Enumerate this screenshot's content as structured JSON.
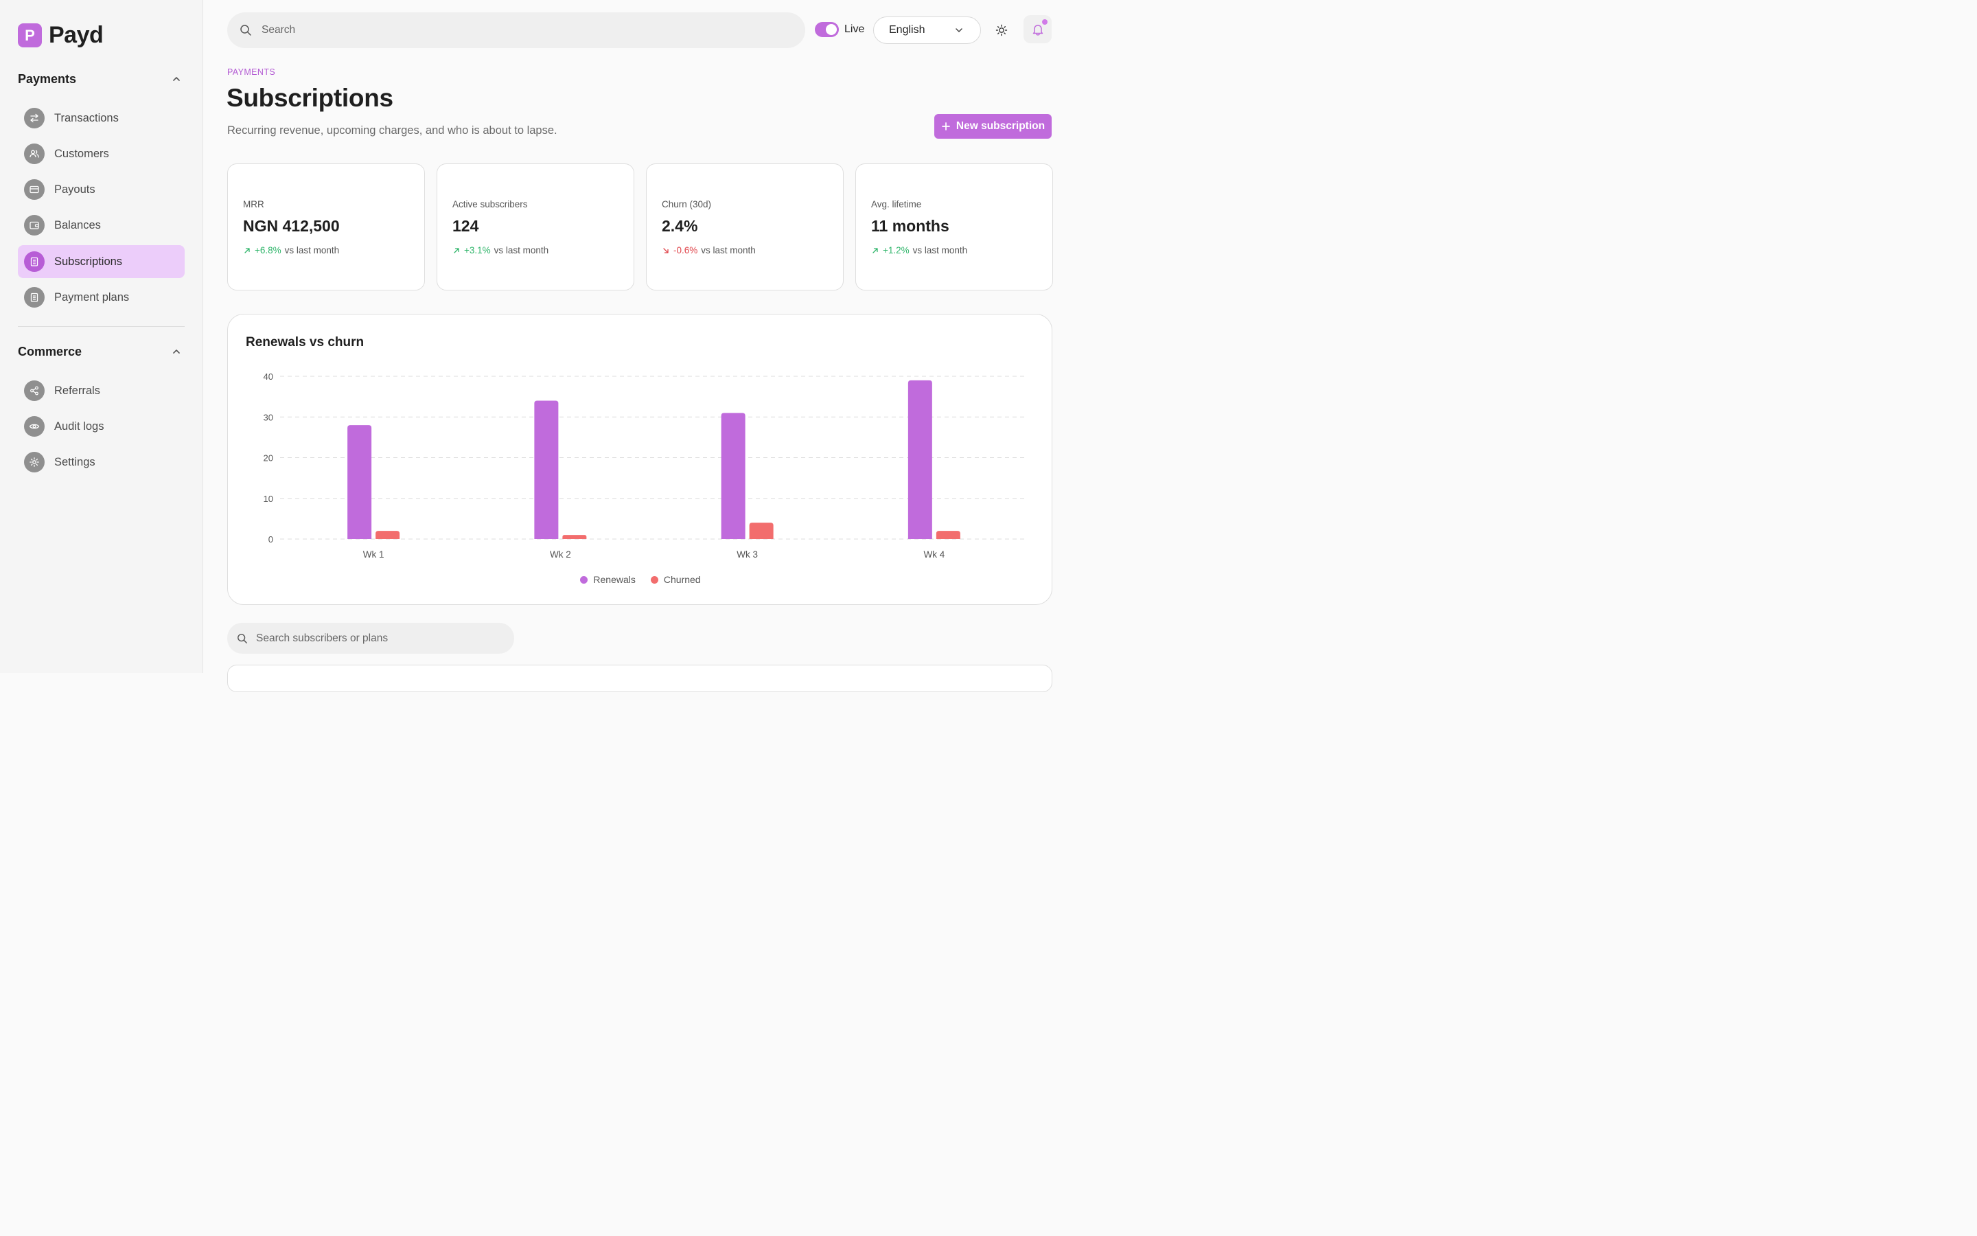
{
  "app": {
    "name": "Payd",
    "logo_letter": "P"
  },
  "sidebar": {
    "sections": [
      {
        "title": "Payments",
        "items": [
          {
            "label": "Transactions",
            "icon": "arrows-swap-icon"
          },
          {
            "label": "Customers",
            "icon": "users-icon"
          },
          {
            "label": "Payouts",
            "icon": "card-icon"
          },
          {
            "label": "Balances",
            "icon": "wallet-icon"
          },
          {
            "label": "Subscriptions",
            "icon": "clipboard-icon",
            "active": true
          },
          {
            "label": "Payment plans",
            "icon": "clipboard-icon"
          }
        ]
      },
      {
        "title": "Commerce",
        "items": [
          {
            "label": "Referrals",
            "icon": "share-icon"
          },
          {
            "label": "Audit logs",
            "icon": "eye-icon"
          },
          {
            "label": "Settings",
            "icon": "gear-icon"
          }
        ]
      }
    ]
  },
  "topbar": {
    "search_placeholder": "Search",
    "live_label": "Live",
    "live_on": true,
    "language": "English"
  },
  "page": {
    "breadcrumb": "PAYMENTS",
    "title": "Subscriptions",
    "subtitle": "Recurring revenue, upcoming charges, and who is about to lapse.",
    "new_button": "New subscription"
  },
  "stats": [
    {
      "label": "MRR",
      "value": "NGN 412,500",
      "delta": "+6.8%",
      "direction": "up",
      "suffix": "vs last month"
    },
    {
      "label": "Active subscribers",
      "value": "124",
      "delta": "+3.1%",
      "direction": "up",
      "suffix": "vs last month"
    },
    {
      "label": "Churn (30d)",
      "value": "2.4%",
      "delta": "-0.6%",
      "direction": "down",
      "suffix": "vs last month"
    },
    {
      "label": "Avg. lifetime",
      "value": "11 months",
      "delta": "+1.2%",
      "direction": "up",
      "suffix": "vs last month"
    }
  ],
  "chart_data": {
    "type": "bar",
    "title": "Renewals vs churn",
    "categories": [
      "Wk 1",
      "Wk 2",
      "Wk 3",
      "Wk 4"
    ],
    "series": [
      {
        "name": "Renewals",
        "values": [
          28,
          34,
          31,
          39
        ],
        "color": "#c06bdc"
      },
      {
        "name": "Churned",
        "values": [
          2,
          1,
          4,
          2
        ],
        "color": "#f26d6d"
      }
    ],
    "ylim": [
      0,
      40
    ],
    "yticks": [
      0,
      10,
      20,
      30,
      40
    ],
    "grid": true,
    "legend": "bottom-center"
  },
  "subscribers": {
    "search_placeholder": "Search subscribers or plans"
  },
  "colors": {
    "accent": "#c06bdc",
    "accent_light": "#eccdfa",
    "positive": "#2fb56a",
    "negative": "#e0454b"
  }
}
